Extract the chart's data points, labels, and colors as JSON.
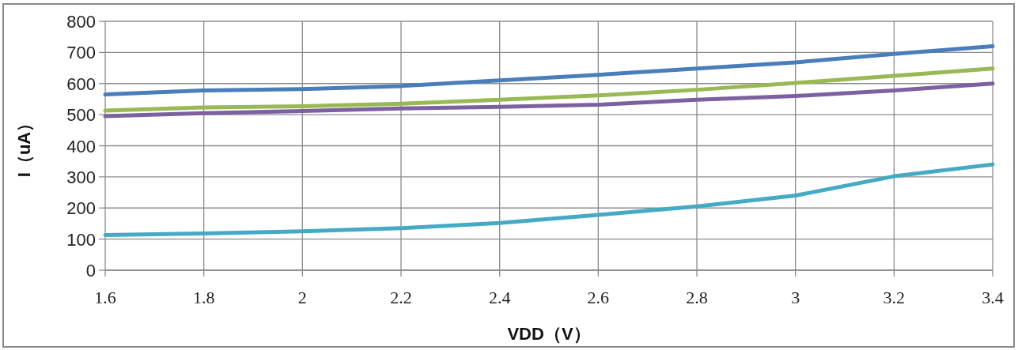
{
  "chart_data": {
    "type": "line",
    "xlabel": "VDD（V）",
    "ylabel": "I（uA）",
    "x": [
      1.6,
      1.8,
      2,
      2.2,
      2.4,
      2.6,
      2.8,
      3,
      3.2,
      3.4
    ],
    "series": [
      {
        "color": "#4a7ebb",
        "values": [
          565,
          578,
          582,
          592,
          610,
          628,
          648,
          668,
          695,
          720
        ]
      },
      {
        "color": "#98b954",
        "values": [
          513,
          523,
          527,
          535,
          548,
          562,
          580,
          602,
          625,
          648
        ]
      },
      {
        "color": "#7d60a0",
        "values": [
          495,
          505,
          512,
          520,
          525,
          532,
          548,
          560,
          578,
          600
        ]
      },
      {
        "color": "#46aac5",
        "values": [
          113,
          118,
          125,
          135,
          152,
          178,
          205,
          240,
          302,
          340
        ]
      }
    ],
    "xlim": [
      1.6,
      3.4
    ],
    "xticks": [
      1.6,
      1.8,
      2,
      2.2,
      2.4,
      2.6,
      2.8,
      3,
      3.2,
      3.4
    ],
    "ylim": [
      0,
      800
    ],
    "yticks": [
      0,
      100,
      200,
      300,
      400,
      500,
      600,
      700,
      800
    ],
    "grid": true,
    "marker": "none",
    "line_style": "solid"
  }
}
